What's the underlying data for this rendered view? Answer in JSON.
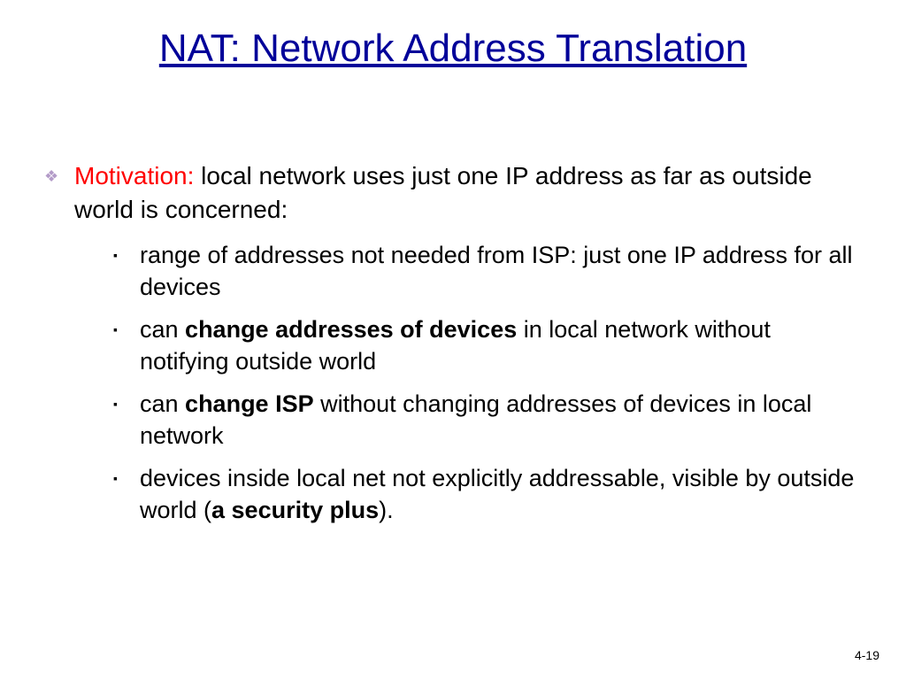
{
  "title": "NAT: Network Address Translation",
  "title_color": "#000099",
  "motivation_label": "Motivation:",
  "motivation_text": " local network uses just one IP address as far as outside world is concerned:",
  "bullets": {
    "b1": "range of addresses not needed from ISP:  just one IP address for all devices",
    "b2_pre": "can ",
    "b2_bold": "change addresses of devices",
    "b2_post": " in local network without notifying outside world",
    "b3_pre": "can ",
    "b3_bold": "change ISP",
    "b3_post": " without changing addresses of devices in local network",
    "b4_pre": "devices inside local net not explicitly addressable, visible by outside world (",
    "b4_bold": "a security plus",
    "b4_post": ")."
  },
  "footer": "4-19",
  "style": {
    "background_color": "#ffffff",
    "title_fontsize": 44,
    "body_fontsize": 28,
    "sub_fontsize": 27,
    "lvl1_bullet_color": "#b39bc8",
    "lvl2_bullet_color": "#000000",
    "highlight_color": "#ff0000",
    "font_family": "Comic Sans MS"
  }
}
